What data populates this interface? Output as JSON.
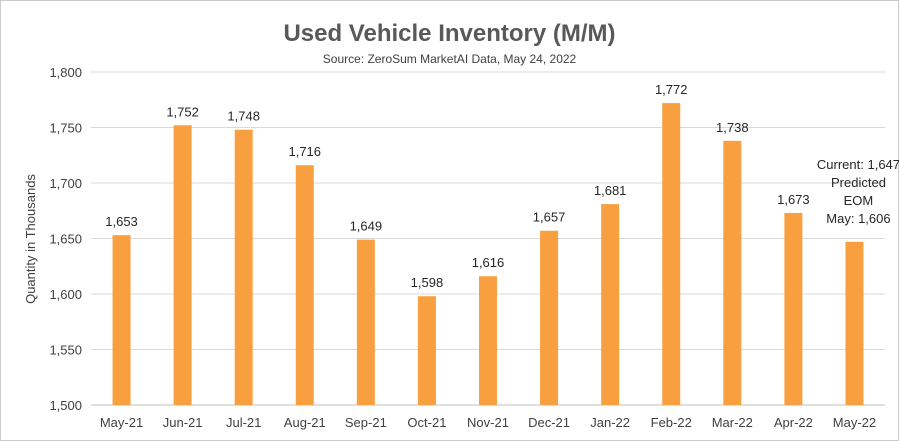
{
  "chart_data": {
    "type": "bar",
    "title": "Used Vehicle Inventory (M/M)",
    "subtitle": "Source: ZeroSum MarketAI Data, May 24, 2022",
    "ylabel": "Quantity in Thousands",
    "xlabel": "",
    "ylim": [
      1500,
      1800
    ],
    "yticks": [
      1500,
      1550,
      1600,
      1650,
      1700,
      1750,
      1800
    ],
    "ytick_labels": [
      "1,500",
      "1,550",
      "1,600",
      "1,650",
      "1,700",
      "1,750",
      "1,800"
    ],
    "grid": true,
    "categories": [
      "May-21",
      "Jun-21",
      "Jul-21",
      "Aug-21",
      "Sep-21",
      "Oct-21",
      "Nov-21",
      "Dec-21",
      "Jan-22",
      "Feb-22",
      "Mar-22",
      "Apr-22",
      "May-22"
    ],
    "values": [
      1653,
      1752,
      1748,
      1716,
      1649,
      1598,
      1616,
      1657,
      1681,
      1772,
      1738,
      1673,
      1647
    ],
    "data_labels": [
      "1,653",
      "1,752",
      "1,748",
      "1,716",
      "1,649",
      "1,598",
      "1,616",
      "1,657",
      "1,681",
      "1,772",
      "1,738",
      "1,673",
      ""
    ],
    "bar_color": "#F8A040",
    "annotation": {
      "category": "May-22",
      "lines": [
        "Current: 1,647",
        "Predicted",
        "EOM",
        "May: 1,606"
      ]
    }
  }
}
